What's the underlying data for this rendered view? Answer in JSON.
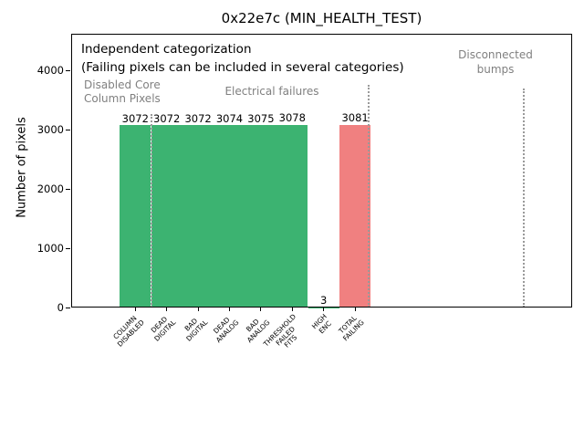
{
  "chart_data": {
    "type": "bar",
    "title": "0x22e7c (MIN_HEALTH_TEST)",
    "ylabel": "Number of pixels",
    "xlabel": "",
    "categories": [
      "COLUMN\nDISABLED",
      "DEAD\nDIGITAL",
      "BAD\nDIGITAL",
      "DEAD\nANALOG",
      "BAD\nANALOG",
      "THRESHOLD\nFAILED\nFITS",
      "HIGH\nENC",
      "TOTAL\nFAILING"
    ],
    "values": [
      3072,
      3072,
      3072,
      3074,
      3075,
      3078,
      3,
      3081
    ],
    "bar_colors": [
      "#3cb371",
      "#3cb371",
      "#3cb371",
      "#3cb371",
      "#3cb371",
      "#3cb371",
      "#3cb371",
      "#f08080"
    ],
    "yticks": [
      0,
      1000,
      2000,
      3000,
      4000
    ],
    "ylim": [
      0,
      4560
    ],
    "grid": false,
    "legend": null,
    "separators": [
      {
        "x_category": 0.5,
        "style": "dotted"
      },
      {
        "x_category": 7.42,
        "style": "dotted"
      },
      {
        "x_category": 12.38,
        "style": "dotted"
      }
    ],
    "annotations": {
      "note": "Independent categorization\n(Failing pixels can be included in several categories)",
      "region_disabled": "Disabled Core\nColumn Pixels",
      "region_electrical": "Electrical failures",
      "region_disconnected": "Disconnected\nbumps"
    }
  },
  "colors": {
    "bar_green": "#3cb371",
    "bar_red": "#f08080",
    "annotation_gray": "#808080",
    "separator_gray": "#9a9a9a",
    "text": "#000000",
    "background": "#ffffff"
  }
}
